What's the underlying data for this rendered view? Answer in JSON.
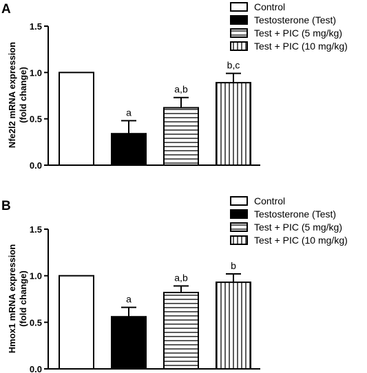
{
  "chart_data": [
    {
      "type": "bar",
      "panel": "A",
      "ylabel_line1": "Nfe2l2 mRNA expression",
      "ylabel_line2": "(fold change)",
      "ylim": [
        0,
        1.5
      ],
      "yticks": [
        "0.0",
        "0.5",
        "1.0",
        "1.5"
      ],
      "categories": [
        "Control",
        "Testosterone (Test)",
        "Test + PIC (5 mg/kg)",
        "Test + PIC (10 mg/kg)"
      ],
      "values": [
        1.0,
        0.34,
        0.62,
        0.89
      ],
      "errors": [
        0.0,
        0.14,
        0.11,
        0.1
      ],
      "significance": [
        "",
        "a",
        "a,b",
        "b,c"
      ],
      "legend_position": "top-right"
    },
    {
      "type": "bar",
      "panel": "B",
      "ylabel_line1": "Hmox1 mRNA expression",
      "ylabel_line2": "(fold change)",
      "ylim": [
        0,
        1.5
      ],
      "yticks": [
        "0.0",
        "0.5",
        "1.0",
        "1.5"
      ],
      "categories": [
        "Control",
        "Testosterone (Test)",
        "Test + PIC (5 mg/kg)",
        "Test + PIC (10 mg/kg)"
      ],
      "values": [
        1.0,
        0.56,
        0.82,
        0.93
      ],
      "errors": [
        0.0,
        0.1,
        0.07,
        0.09
      ],
      "significance": [
        "",
        "a",
        "a,b",
        "b"
      ],
      "legend_position": "top-right"
    }
  ],
  "styles": {
    "fills": [
      "#ffffff",
      "#000000",
      "h-stripes",
      "v-stripes"
    ],
    "stroke": "#000000"
  }
}
